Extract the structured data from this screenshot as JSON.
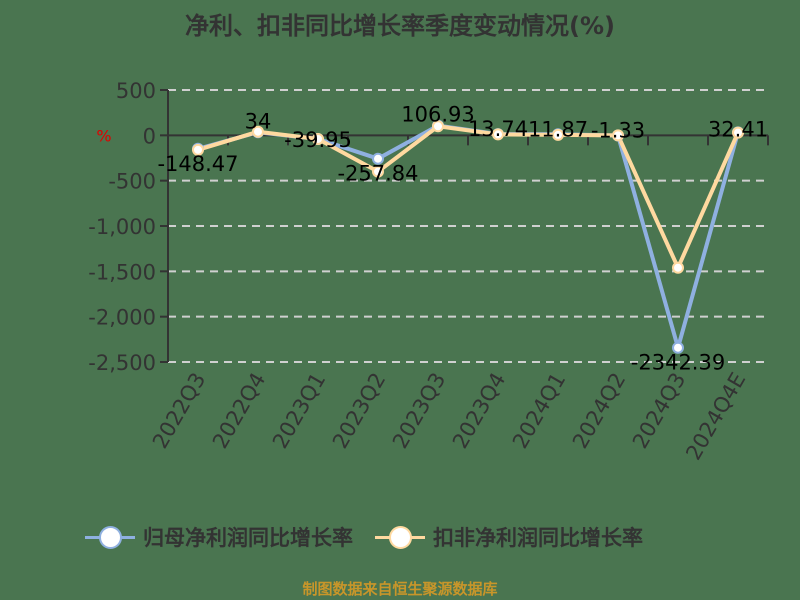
{
  "title": "净利、扣非同比增长率季度变动情况(%)",
  "y_axis_unit": "%",
  "footer": "制图数据来自恒生聚源数据库",
  "colors": {
    "background": "#4a7550",
    "series1": "#8fb0e0",
    "series2": "#ffd9a0",
    "axis_text": "#333333",
    "grid": "#d0d0d0",
    "footer": "#c8962a",
    "unit": "#e00000"
  },
  "legend": [
    {
      "label": "归母净利润同比增长率",
      "color": "#8fb0e0"
    },
    {
      "label": "扣非净利润同比增长率",
      "color": "#ffd9a0"
    }
  ],
  "chart_data": {
    "type": "line",
    "title": "净利、扣非同比增长率季度变动情况(%)",
    "xlabel": "",
    "ylabel": "%",
    "categories": [
      "2022Q3",
      "2022Q4",
      "2023Q1",
      "2023Q2",
      "2023Q3",
      "2023Q4",
      "2024Q1",
      "2024Q2",
      "2024Q3",
      "2024Q4E"
    ],
    "ylim": [
      -2500,
      500
    ],
    "yticks": [
      "500",
      "0",
      "-500",
      "-1,000",
      "-1,500",
      "-2,000",
      "-2,500"
    ],
    "grid": true,
    "legend_position": "bottom",
    "series": [
      {
        "name": "归母净利润同比增长率",
        "values": [
          -148.47,
          34,
          -39.95,
          -257.84,
          106.93,
          13.74,
          11.87,
          -1.33,
          -2342.39,
          32.41
        ],
        "labels": [
          "-148.47",
          "34",
          "-39.95",
          "-257.84",
          "106.93",
          "13.74",
          "11.87",
          "-1.33",
          "-2342.39",
          "32.41"
        ]
      },
      {
        "name": "扣非净利润同比增长率",
        "values": [
          -160,
          40,
          -40,
          -400,
          100,
          10,
          5,
          0,
          -1460,
          30
        ]
      }
    ]
  }
}
